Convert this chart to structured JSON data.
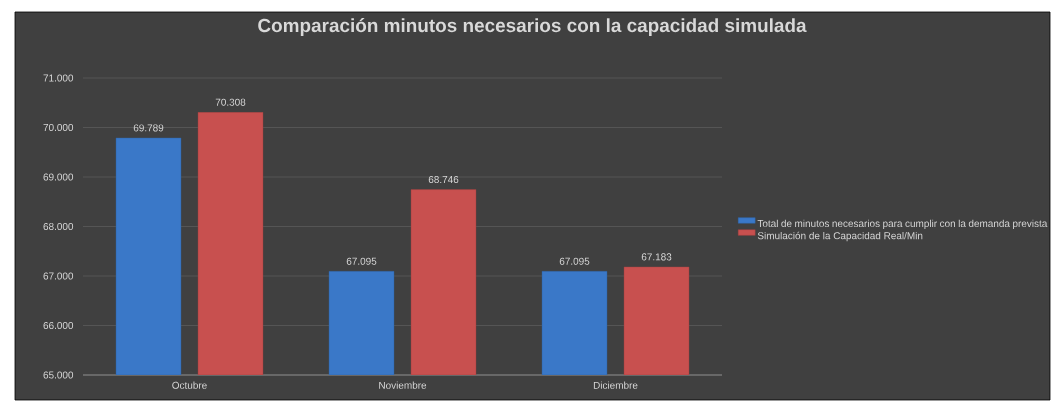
{
  "chart_data": {
    "type": "bar",
    "title": "Comparación minutos necesarios con la capacidad simulada",
    "categories": [
      "Octubre",
      "Noviembre",
      "Diciembre"
    ],
    "series": [
      {
        "name": "Total de minutos necesarios para cumplir con la demanda prevista",
        "color": "#3a78c8",
        "values": [
          69789,
          67095,
          67095
        ],
        "value_labels": [
          "69.789",
          "67.095",
          "67.095"
        ]
      },
      {
        "name": "Simulación de la Capacidad Real/Min",
        "color": "#c8504f",
        "values": [
          70308,
          68746,
          67183
        ],
        "value_labels": [
          "70.308",
          "68.746",
          "67.183"
        ]
      }
    ],
    "ylim": [
      65000,
      71000
    ],
    "yticks": [
      {
        "value": 65000,
        "label": "65.000"
      },
      {
        "value": 66000,
        "label": "66.000"
      },
      {
        "value": 67000,
        "label": "67.000"
      },
      {
        "value": 68000,
        "label": "68.000"
      },
      {
        "value": 69000,
        "label": "69.000"
      },
      {
        "value": 70000,
        "label": "70.000"
      },
      {
        "value": 71000,
        "label": "71.000"
      }
    ],
    "grid": "y",
    "legend": "right"
  }
}
